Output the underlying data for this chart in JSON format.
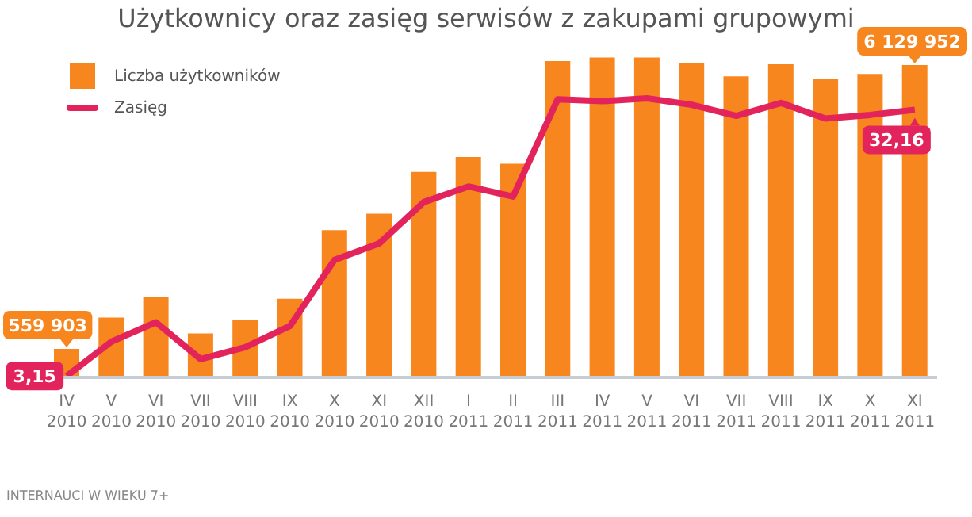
{
  "chart_data": {
    "type": "bar",
    "title": "Użytkownicy oraz zasięg serwisów z zakupami grupowymi",
    "categories": [
      "IV 2010",
      "V 2010",
      "VI 2010",
      "VII 2010",
      "VIII 2010",
      "IX 2010",
      "X 2010",
      "XI 2010",
      "XII 2010",
      "I 2011",
      "II 2011",
      "III 2011",
      "IV 2011",
      "V 2011",
      "VI 2011",
      "VII 2011",
      "VIII 2011",
      "IX 2011",
      "X 2011",
      "XI 2011"
    ],
    "series": [
      {
        "name": "Liczba użytkowników",
        "color": "#f7861f",
        "values": [
          559903,
          1173000,
          1585000,
          864000,
          1128000,
          1543000,
          2890000,
          3215000,
          4034000,
          4325000,
          4193000,
          6209000,
          6280000,
          6280000,
          6166000,
          5910000,
          6148000,
          5865000,
          5955000,
          6129952
        ],
        "value_labels": [
          "559 903",
          null,
          null,
          null,
          null,
          null,
          null,
          null,
          null,
          null,
          null,
          null,
          null,
          null,
          null,
          null,
          null,
          null,
          null,
          "6 129 952"
        ]
      },
      {
        "name": "Zasięg",
        "type": "line",
        "axis": "y2",
        "color": "#e3245c",
        "values": [
          3.15,
          6.9,
          9.0,
          5.0,
          6.3,
          8.6,
          15.8,
          17.6,
          22.1,
          23.8,
          22.7,
          33.3,
          33.1,
          33.4,
          32.7,
          31.5,
          32.9,
          31.2,
          31.6,
          32.16
        ],
        "value_labels": [
          "3,15",
          null,
          null,
          null,
          null,
          null,
          null,
          null,
          null,
          null,
          null,
          null,
          null,
          null,
          null,
          null,
          null,
          null,
          null,
          "32,16"
        ]
      }
    ],
    "tick_labels": "x",
    "grid": false,
    "legend": "top left",
    "marker": "none",
    "line_style": "solid",
    "annotations": [
      "INTERNAUCI W WIEKU 7+"
    ]
  }
}
